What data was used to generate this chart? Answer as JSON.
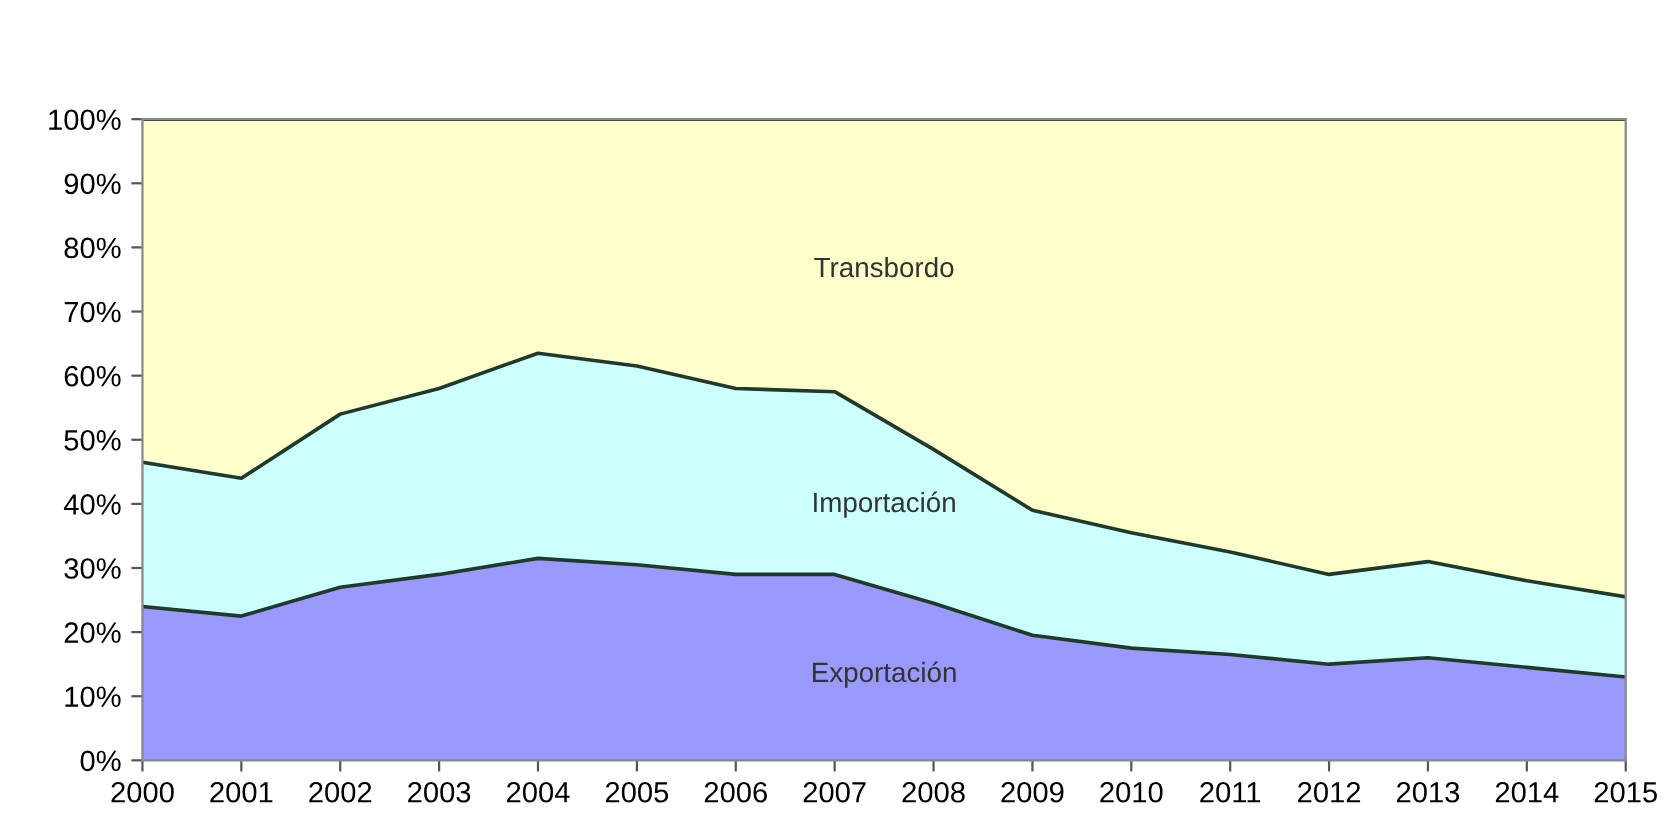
{
  "chart_data": {
    "type": "area",
    "stacked": true,
    "x": [
      2000,
      2001,
      2002,
      2003,
      2004,
      2005,
      2006,
      2007,
      2008,
      2009,
      2010,
      2011,
      2012,
      2013,
      2014,
      2015
    ],
    "series": [
      {
        "name": "Exportación",
        "color": "#9999ff",
        "values": [
          24,
          22.5,
          27,
          29,
          31.5,
          30.5,
          29,
          29,
          24.5,
          19.5,
          17.5,
          16.5,
          15,
          16,
          14.5,
          13
        ]
      },
      {
        "name": "Importación",
        "color": "#ccffff",
        "values": [
          22.5,
          21.5,
          27,
          29,
          32,
          31,
          29,
          28.5,
          24,
          19.5,
          18,
          16,
          14,
          15,
          13.5,
          12.5
        ]
      },
      {
        "name": "Transbordo",
        "color": "#ffffcc",
        "values": [
          53.5,
          56,
          46,
          42,
          36.5,
          38.5,
          42,
          42.5,
          51.5,
          61,
          64.5,
          67.5,
          71,
          69,
          72,
          74.5
        ]
      }
    ],
    "xlim": [
      2000,
      2015
    ],
    "xticks": [
      2000,
      2001,
      2002,
      2003,
      2004,
      2005,
      2006,
      2007,
      2008,
      2009,
      2010,
      2011,
      2012,
      2013,
      2014,
      2015
    ],
    "ylim": [
      0,
      100
    ],
    "yticks": [
      {
        "value": 0,
        "label": "0%"
      },
      {
        "value": 10,
        "label": "10%"
      },
      {
        "value": 20,
        "label": "20%"
      },
      {
        "value": 30,
        "label": "30%"
      },
      {
        "value": 40,
        "label": "40%"
      },
      {
        "value": 50,
        "label": "50%"
      },
      {
        "value": 60,
        "label": "60%"
      },
      {
        "value": 70,
        "label": "70%"
      },
      {
        "value": 80,
        "label": "80%"
      },
      {
        "value": 90,
        "label": "90%"
      },
      {
        "value": 100,
        "label": "100%"
      }
    ],
    "grid": false,
    "legend": false
  }
}
